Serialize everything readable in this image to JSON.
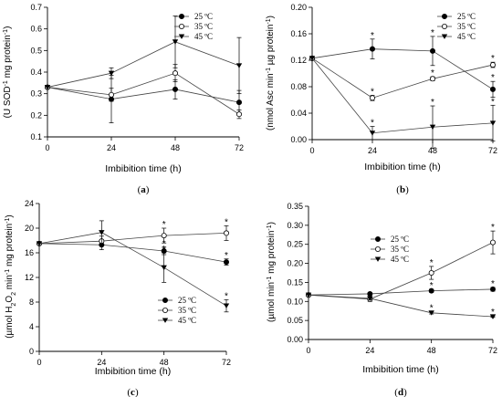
{
  "chart_data": [
    {
      "type": "line",
      "panel_label": "(a)",
      "panel_letter": "a",
      "xlabel": "Imbibition time (h)",
      "ylabel_parts": [
        "(U SOD",
        "-1",
        " mg protein",
        "-1",
        ")"
      ],
      "x": [
        0,
        24,
        48,
        72
      ],
      "xlim": [
        0,
        72
      ],
      "ylim": [
        0.1,
        0.7
      ],
      "yticks": [
        0.1,
        0.2,
        0.3,
        0.4,
        0.5,
        0.6,
        0.7
      ],
      "ytick_labels": [
        "0.1",
        "0.2",
        "0.3",
        "0.4",
        "0.5",
        "0.6",
        "0.7"
      ],
      "legend_position": "top-right",
      "series": [
        {
          "name": "25 ºC",
          "marker": "filled-circle",
          "values": [
            0.33,
            0.275,
            0.32,
            0.26
          ],
          "errors": [
            0,
            0.11,
            0.045,
            0.055
          ],
          "stars": [
            false,
            false,
            false,
            false
          ]
        },
        {
          "name": "35 ºC",
          "marker": "open-circle",
          "values": [
            0.33,
            0.295,
            0.395,
            0.205
          ],
          "errors": [
            0,
            0.03,
            0.04,
            0.02
          ],
          "stars": [
            false,
            false,
            false,
            false
          ]
        },
        {
          "name": "45 ºC",
          "marker": "filled-triangle",
          "values": [
            0.33,
            0.395,
            0.54,
            0.43
          ],
          "errors": [
            0,
            0.025,
            0.12,
            0.13
          ],
          "stars": [
            false,
            false,
            false,
            false
          ]
        }
      ]
    },
    {
      "type": "line",
      "panel_label": "(b)",
      "panel_letter": "b",
      "xlabel": "Imbibition time (h)",
      "ylabel_parts": [
        "(nmol Asc min",
        "-1",
        " µg protein",
        "-1",
        ")"
      ],
      "x": [
        0,
        24,
        48,
        72
      ],
      "xlim": [
        0,
        72
      ],
      "ylim": [
        0,
        0.2
      ],
      "yticks": [
        0,
        0.04,
        0.08,
        0.12,
        0.16,
        0.2
      ],
      "ytick_labels": [
        "0.00",
        "0.04",
        "0.08",
        "0.12",
        "0.16",
        "0.20"
      ],
      "legend_position": "top-right",
      "series": [
        {
          "name": "25 ºC",
          "marker": "filled-circle",
          "values": [
            0.123,
            0.137,
            0.134,
            0.076
          ],
          "errors": [
            0,
            0.015,
            0.022,
            0.012
          ],
          "stars": [
            false,
            true,
            true,
            true
          ]
        },
        {
          "name": "35 ºC",
          "marker": "open-circle",
          "values": [
            0.123,
            0.063,
            0.092,
            0.113
          ],
          "errors": [
            0,
            0.004,
            0.003,
            0.004
          ],
          "stars": [
            false,
            true,
            true,
            true
          ]
        },
        {
          "name": "45 ºC",
          "marker": "filled-triangle",
          "values": [
            0.123,
            0.01,
            0.019,
            0.025
          ],
          "errors": [
            0,
            0.01,
            0.032,
            0.027
          ],
          "stars": [
            false,
            true,
            true,
            true
          ]
        }
      ]
    },
    {
      "type": "line",
      "panel_label": "(c)",
      "panel_letter": "c",
      "xlabel": "Imbibition time (h)",
      "ylabel_parts": [
        "(µmol H",
        "2",
        "O",
        "2",
        " min",
        "-1",
        " mg protein",
        "-1",
        ")"
      ],
      "x": [
        0,
        24,
        48,
        72
      ],
      "xlim": [
        0,
        72
      ],
      "ylim": [
        0,
        24
      ],
      "yticks": [
        0,
        4,
        8,
        12,
        16,
        20,
        24
      ],
      "ytick_labels": [
        "0",
        "4",
        "8",
        "12",
        "16",
        "20",
        "24"
      ],
      "legend_position": "bottom-right",
      "series": [
        {
          "name": "25 ºC",
          "marker": "filled-circle",
          "values": [
            17.5,
            17.3,
            16.3,
            14.5
          ],
          "errors": [
            0,
            0.8,
            0.6,
            0.5
          ],
          "stars": [
            false,
            false,
            true,
            true
          ]
        },
        {
          "name": "35 ºC",
          "marker": "open-circle",
          "values": [
            17.5,
            17.9,
            18.8,
            19.2
          ],
          "errors": [
            0,
            0.8,
            1.2,
            1.2
          ],
          "stars": [
            false,
            false,
            true,
            true
          ]
        },
        {
          "name": "45 ºC",
          "marker": "filled-triangle",
          "values": [
            17.5,
            19.3,
            13.6,
            7.4
          ],
          "errors": [
            0,
            1.9,
            2.4,
            1.0
          ],
          "stars": [
            false,
            false,
            true,
            true
          ]
        }
      ]
    },
    {
      "type": "line",
      "panel_label": "(d)",
      "panel_letter": "d",
      "xlabel": "Imbibition time (h)",
      "ylabel_parts": [
        "(µmol min",
        "-1",
        " mg protein",
        "-1",
        ")"
      ],
      "x": [
        0,
        24,
        48,
        72
      ],
      "xlim": [
        0,
        72
      ],
      "ylim": [
        0,
        0.35
      ],
      "yticks": [
        0,
        0.05,
        0.1,
        0.15,
        0.2,
        0.25,
        0.3,
        0.35
      ],
      "ytick_labels": [
        "0.00",
        "0.05",
        "0.10",
        "0.15",
        "0.20",
        "0.25",
        "0.30",
        "0.35"
      ],
      "legend_position": "top-center",
      "series": [
        {
          "name": "25 ºC",
          "marker": "filled-circle",
          "values": [
            0.117,
            0.12,
            0.128,
            0.132
          ],
          "errors": [
            0,
            0.003,
            0.004,
            0.005
          ],
          "stars": [
            false,
            false,
            true,
            true
          ]
        },
        {
          "name": "35 ºC",
          "marker": "open-circle",
          "values": [
            0.117,
            0.106,
            0.175,
            0.255
          ],
          "errors": [
            0,
            0.006,
            0.017,
            0.03
          ],
          "stars": [
            false,
            false,
            true,
            true
          ]
        },
        {
          "name": "45 ºC",
          "marker": "filled-triangle",
          "values": [
            0.117,
            0.108,
            0.07,
            0.06
          ],
          "errors": [
            0,
            0.004,
            0.003,
            0.002
          ],
          "stars": [
            false,
            false,
            true,
            true
          ]
        }
      ]
    }
  ]
}
